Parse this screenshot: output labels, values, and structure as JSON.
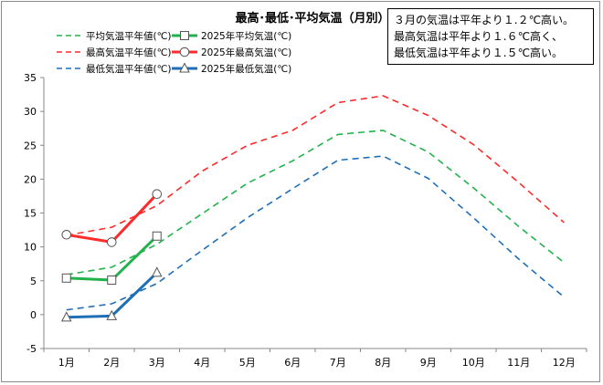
{
  "chart_data": {
    "type": "line",
    "title": "最高･最低･平均気温（月別）",
    "categories": [
      "1月",
      "2月",
      "3月",
      "4月",
      "5月",
      "6月",
      "7月",
      "8月",
      "9月",
      "10月",
      "11月",
      "12月"
    ],
    "ylim": [
      -5,
      35
    ],
    "yticks": [
      -5,
      0,
      5,
      10,
      15,
      20,
      25,
      30,
      35
    ],
    "grid": false,
    "legend_position": "top-left",
    "series": [
      {
        "name": "平均気温平年値(℃)",
        "style": "dashed",
        "color": "#22b24c",
        "marker": "none",
        "values": [
          5.9,
          7.0,
          10.4,
          14.9,
          19.4,
          22.7,
          26.6,
          27.2,
          24.0,
          18.7,
          13.0,
          7.7
        ]
      },
      {
        "name": "2025年平均気温(℃)",
        "style": "solid",
        "color": "#22b24c",
        "marker": "square",
        "values": [
          5.4,
          5.1,
          11.6,
          null,
          null,
          null,
          null,
          null,
          null,
          null,
          null,
          null
        ]
      },
      {
        "name": "最高気温平年値(℃)",
        "style": "dashed",
        "color": "#ff2a2a",
        "marker": "none",
        "values": [
          11.7,
          12.9,
          16.1,
          21.2,
          25.0,
          27.2,
          31.3,
          32.3,
          29.4,
          25.1,
          19.5,
          13.6
        ]
      },
      {
        "name": "2025年最高気温(℃)",
        "style": "solid",
        "color": "#ff2a2a",
        "marker": "circle",
        "values": [
          11.8,
          10.7,
          17.8,
          null,
          null,
          null,
          null,
          null,
          null,
          null,
          null,
          null
        ]
      },
      {
        "name": "最低気温平年値(℃)",
        "style": "dashed",
        "color": "#1f6fb8",
        "marker": "none",
        "values": [
          0.7,
          1.6,
          4.6,
          9.5,
          14.3,
          18.6,
          22.8,
          23.4,
          20.1,
          14.3,
          8.2,
          2.6
        ]
      },
      {
        "name": "2025年最低気温(℃)",
        "style": "solid",
        "color": "#1f6fb8",
        "marker": "triangle",
        "values": [
          -0.4,
          -0.2,
          6.2,
          null,
          null,
          null,
          null,
          null,
          null,
          null,
          null,
          null
        ]
      }
    ]
  },
  "note": {
    "lines": [
      "３月の気温は平年より１.２℃高い。",
      "最高気温は平年より１.６℃高く、",
      "最低気温は平年より１.５℃高い。"
    ]
  }
}
